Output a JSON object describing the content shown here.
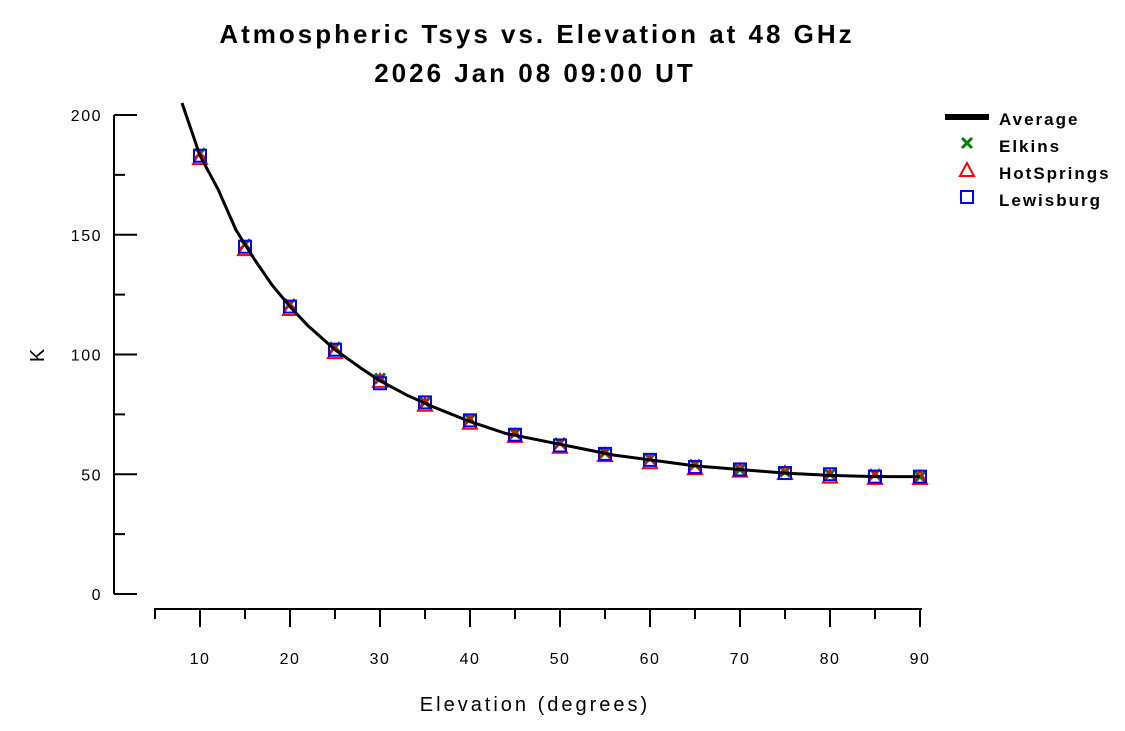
{
  "chart_data": {
    "type": "line",
    "title": "Atmospheric Tsys vs. Elevation at 48 GHz",
    "subtitle": "2026 Jan 08 09:00 UT",
    "xlabel": "Elevation (degrees)",
    "ylabel": "K",
    "xlim": [
      5,
      90
    ],
    "ylim": [
      0,
      200
    ],
    "x_ticks": [
      10,
      20,
      30,
      40,
      50,
      60,
      70,
      80,
      90
    ],
    "y_ticks": [
      0,
      50,
      100,
      150,
      200
    ],
    "grid": false,
    "legend_position": "top-right",
    "x": [
      10,
      15,
      20,
      25,
      30,
      35,
      40,
      45,
      50,
      55,
      60,
      65,
      70,
      75,
      80,
      85,
      90
    ],
    "series": [
      {
        "name": "Average",
        "style": "line",
        "color": "#000000",
        "x": [
          8,
          10,
          12,
          14,
          16,
          18,
          20,
          22,
          25,
          28,
          30,
          33,
          36,
          40,
          44,
          48,
          52,
          56,
          60,
          65,
          70,
          75,
          80,
          85,
          90
        ],
        "values": [
          205,
          183,
          169,
          152,
          140,
          129,
          120,
          112,
          102,
          94,
          89,
          83,
          78,
          72,
          67,
          64,
          61,
          58,
          56,
          53.5,
          52,
          50.5,
          49.5,
          49,
          49
        ]
      },
      {
        "name": "Elkins",
        "style": "markers",
        "marker": "x",
        "color": "#008000",
        "values": [
          184,
          146,
          121,
          103,
          90,
          80,
          73,
          67,
          63,
          59,
          56.5,
          54,
          52,
          51,
          50,
          50,
          49
        ]
      },
      {
        "name": "HotSprings",
        "style": "markers",
        "marker": "triangle",
        "color": "#ff0000",
        "values": [
          182,
          144,
          119,
          101,
          89,
          79,
          71.5,
          66,
          61.5,
          58,
          55,
          52.5,
          51.5,
          50.5,
          49,
          48.5,
          48.5
        ]
      },
      {
        "name": "Lewisburg",
        "style": "markers",
        "marker": "square",
        "color": "#0000ff",
        "values": [
          183,
          145,
          120,
          102,
          88,
          80,
          72.5,
          66.5,
          62,
          58.5,
          56,
          53,
          52,
          50.5,
          50,
          49,
          49
        ]
      }
    ]
  }
}
